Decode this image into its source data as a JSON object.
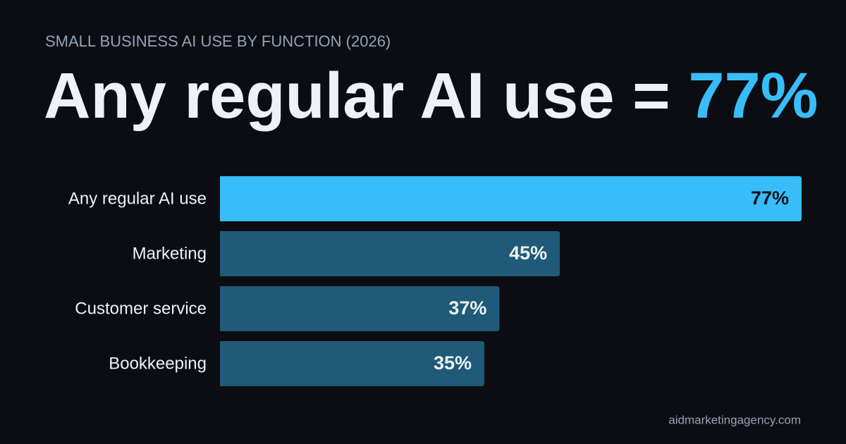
{
  "chart_data": {
    "type": "bar",
    "orientation": "horizontal",
    "subtitle": "SMALL BUSINESS AI USE BY FUNCTION (2026)",
    "title": {
      "text": "Any regular AI use =",
      "highlight": "77%",
      "highlight_color": "#38bdf8"
    },
    "categories": [
      "Any regular AI use",
      "Marketing",
      "Customer service",
      "Bookkeeping"
    ],
    "values": [
      77,
      45,
      37,
      35
    ],
    "value_labels": [
      "77%",
      "45%",
      "37%",
      "35%"
    ],
    "colors": [
      "#38bdf8",
      "#1f5a78",
      "#1f5a78",
      "#1f5a78"
    ],
    "source": "aidmarketingagency.com"
  }
}
